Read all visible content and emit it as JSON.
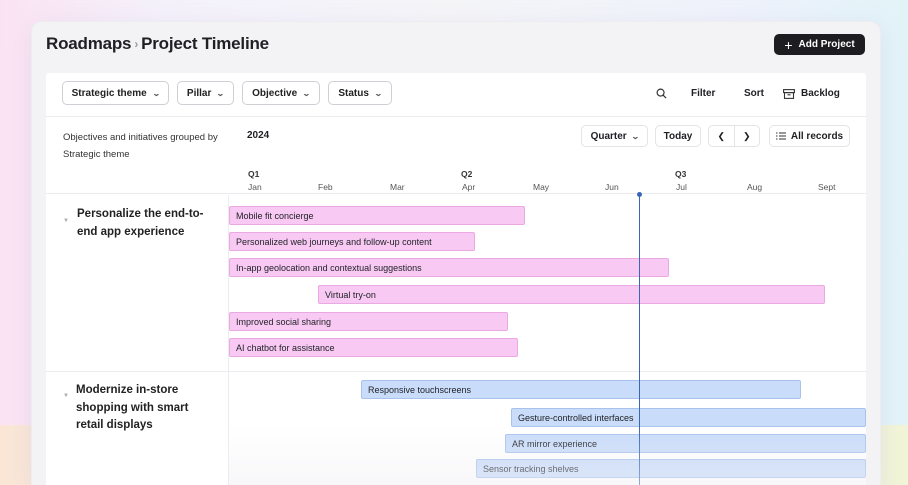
{
  "breadcrumb": {
    "root": "Roadmaps",
    "separator": "›",
    "current": "Project Timeline"
  },
  "add_project_label": "Add Project",
  "filters": [
    {
      "label": "Strategic theme"
    },
    {
      "label": "Pillar"
    },
    {
      "label": "Objective"
    },
    {
      "label": "Status"
    }
  ],
  "toolbar": {
    "search_icon": "search-icon",
    "filter_label": "Filter",
    "sort_label": "Sort",
    "backlog_label": "Backlog",
    "backlog_icon": "archive-icon"
  },
  "timeline": {
    "grouping_note": "Objectives and initiatives grouped by Strategic theme",
    "year": "2024",
    "zoom_label": "Quarter",
    "today_label": "Today",
    "all_records_label": "All records",
    "quarters": [
      "Q1",
      "Q2",
      "Q3"
    ],
    "months": [
      "Jan",
      "Feb",
      "Mar",
      "Apr",
      "May",
      "Jun",
      "Jul",
      "Aug",
      "Sept"
    ]
  },
  "groups": [
    {
      "title": "Personalize the end-to-end app experience",
      "color": "#f7c9f3",
      "items": [
        {
          "label": "Mobile fit concierge"
        },
        {
          "label": "Personalized web journeys and follow-up content"
        },
        {
          "label": "In-app geolocation and contextual suggestions"
        },
        {
          "label": "Virtual try-on"
        },
        {
          "label": "Improved social sharing"
        },
        {
          "label": "AI chatbot for assistance"
        }
      ]
    },
    {
      "title": "Modernize in-store shopping with smart retail displays",
      "color": "#c9dcfa",
      "items": [
        {
          "label": "Responsive touchscreens"
        },
        {
          "label": "Gesture-controlled interfaces"
        },
        {
          "label": "AR mirror experience"
        },
        {
          "label": "Sensor tracking shelves"
        }
      ]
    }
  ],
  "colors": {
    "primary_button": "#1d1d21",
    "today_line": "#3b66b7",
    "pink_bar": "#f7c9f3",
    "blue_bar": "#c9dcfa"
  }
}
